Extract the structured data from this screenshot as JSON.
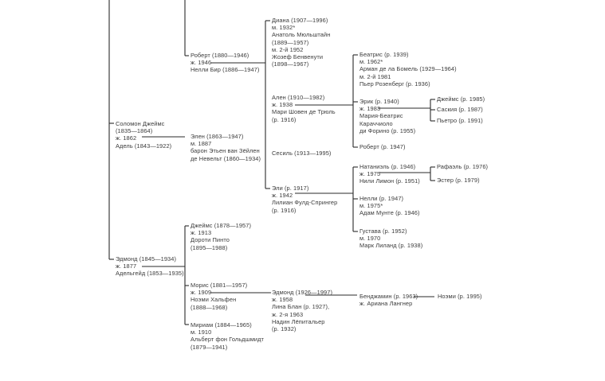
{
  "tree": {
    "solomon": [
      "Соломон Джеймс",
      "(1835—1864)",
      "ж. 1862",
      "Адель (1843—1922)"
    ],
    "robert1880": [
      "Роберт (1880—1946)",
      "ж. 1946",
      "Нелли Бир (1886—1947)"
    ],
    "ellen": [
      "Элен (1863—1947)",
      "м. 1887",
      "барон Этьен ван Зёйлен",
      "де Невельт (1860—1934)"
    ],
    "diana": [
      "Диана (1907—1996)",
      "м. 1932*",
      "Анатоль Мюльштайн",
      "(1889—1957)",
      "м. 2-й 1952",
      "Жозеф Бенвенути",
      "(1898—1967)"
    ],
    "alain": [
      "Ален (1910—1982)",
      "ж. 1938",
      "Мари Шовен де Трюль",
      "(р. 1916)"
    ],
    "cecile": [
      "Сесиль (1913—1995)"
    ],
    "eli": [
      "Эли (р. 1917)",
      "ж. 1942",
      "Лилиан Фулд-Спрингер",
      "(р. 1916)"
    ],
    "beatrice": [
      "Беатрис (р. 1939)",
      "м. 1962*",
      "Арман де ла Бомель (1929—1964)",
      "м. 2-й 1981",
      "Пьер Розенберг (р. 1936)"
    ],
    "eric": [
      "Эрик (р. 1940)",
      "ж. 1983",
      "Мария-Беатрис",
      "Караччиоло",
      "ди Форино (р. 1955)"
    ],
    "robert1947": [
      "Роберт (р. 1947)"
    ],
    "james1985": [
      "Джеймс (р. 1985)"
    ],
    "saskia": [
      "Саския (р. 1987)"
    ],
    "pietro": [
      "Пьетро (р. 1991)"
    ],
    "nathaniel": [
      "Натаниэль (р. 1946)",
      "ж. 1975",
      "Нили Лимон (р. 1951)"
    ],
    "nelly": [
      "Нелли (р. 1947)",
      "м. 1975*",
      "Адам Мунте (р. 1946)"
    ],
    "gustave": [
      "Густава (р. 1952)",
      "м. 1970",
      "Марк Лиланд (р. 1938)"
    ],
    "raphael": [
      "Рафаэль (р. 1976)"
    ],
    "ester": [
      "Эстер (р. 1979)"
    ],
    "edmond1845": [
      "Эдмонд (1845—1934)",
      "ж. 1877",
      "Адельгейд (1853—1935)"
    ],
    "james1878": [
      "Джеймс (1878—1957)",
      "ж. 1913",
      "Дороти Пинто",
      "(1895—1988)"
    ],
    "maurice": [
      "Морис (1881—1957)",
      "ж. 1909",
      "Ноэми Хальфен",
      "(1888—1968)"
    ],
    "miriam": [
      "Мириам (1884—1965)",
      "м. 1910",
      "Альберт фон Гольдшмидт",
      "(1879—1941)"
    ],
    "edmond1926": [
      "Эдмонд (1926—1997)",
      "ж. 1958",
      "Лина Блан (р. 1927),",
      "ж. 2-я 1963",
      "Надин Лёпитальер",
      "(р. 1932)"
    ],
    "benjamin": [
      "Бенджамин (р. 1963)",
      "ж. Ариана Лангнер"
    ],
    "noemi": [
      "Ноэми (р. 1995)"
    ]
  }
}
